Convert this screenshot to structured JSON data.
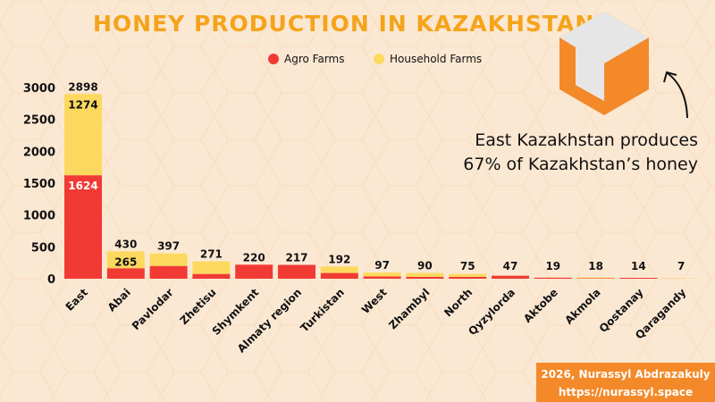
{
  "colors": {
    "background": "#fbe8d3",
    "agro": "#f23a35",
    "household": "#fcd95e",
    "title": "#f5a31a",
    "logo_orange": "#f4892a",
    "logo_gray": "#e6e6e6",
    "credit_bg": "#f4892a"
  },
  "annotation": {
    "line1": "East Kazakhstan produces",
    "line2": "67% of Kazakhstan’s honey"
  },
  "logo": {
    "icon": "hexagon-cube-icon"
  },
  "credit": {
    "line1": "2026, Nurassyl Abdrazakuly",
    "line2": "https://nurassyl.space"
  },
  "chart_data": {
    "type": "bar",
    "stacked": true,
    "title": "Honey production in Kazakhstan",
    "xlabel": "",
    "ylabel": "",
    "ylim": [
      0,
      3000
    ],
    "yticks": [
      0,
      500,
      1000,
      1500,
      2000,
      2500,
      3000
    ],
    "grid": false,
    "legend": "top-center",
    "categories": [
      "East",
      "Abai",
      "Pavlodar",
      "Zhetisu",
      "Shymkent",
      "Almaty region",
      "Turkistan",
      "West",
      "Zhambyl",
      "North",
      "Qyzylorda",
      "Aktobe",
      "Akmola",
      "Qostanay",
      "Qaragandy"
    ],
    "totals": [
      2898,
      430,
      397,
      271,
      220,
      217,
      192,
      97,
      90,
      75,
      47,
      19,
      18,
      14,
      7
    ],
    "series": [
      {
        "name": "Agro Farms",
        "values": [
          1624,
          165,
          200,
          75,
          220,
          217,
          90,
          35,
          30,
          30,
          47,
          17,
          7,
          14,
          1
        ]
      },
      {
        "name": "Household Farms",
        "values": [
          1274,
          265,
          197,
          196,
          0,
          0,
          102,
          62,
          60,
          45,
          0,
          2,
          11,
          0,
          6
        ]
      }
    ],
    "shown_segment_labels": {
      "Agro Farms": {
        "East": 1624
      },
      "Household Farms": {
        "East": 1274,
        "Abai": 265
      }
    }
  }
}
